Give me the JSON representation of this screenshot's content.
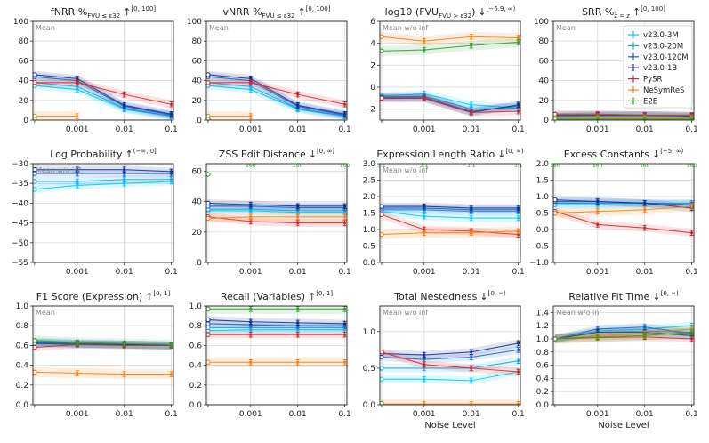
{
  "colors": {
    "v23.0-3M": "#00ccf5",
    "v23.0-20M": "#1aa6ea",
    "v23.0-120M": "#1c62c4",
    "v23.0-1B": "#10308f",
    "PySR": "#d62728",
    "NeSymReS": "#ff7f0e",
    "E2E": "#2ca02c"
  },
  "legend": [
    "v23.0-3M",
    "v23.0-20M",
    "v23.0-120M",
    "v23.0-1B",
    "PySR",
    "NeSymReS",
    "E2E"
  ],
  "chart_data": [
    {
      "type": "line",
      "title": "fNRR %",
      "title_sub": "FVU ≤ ε32",
      "title_arrow": "↑",
      "title_sup": "[0, 100]",
      "annotation": "Mean",
      "xlabel": "",
      "ylim": [
        0,
        100
      ],
      "y_ticks": [
        0,
        20,
        40,
        60,
        80,
        100
      ],
      "y_tick_labels": [
        "0",
        "20",
        "40",
        "60",
        "80",
        "100"
      ],
      "x_tick_labels": [
        "",
        "0.001",
        "0.01",
        "0.1"
      ],
      "series": [
        {
          "name": "v23.0-3M",
          "values": [
            35,
            31,
            11,
            4
          ]
        },
        {
          "name": "v23.0-20M",
          "values": [
            38,
            34,
            12,
            4
          ]
        },
        {
          "name": "v23.0-120M",
          "values": [
            44,
            40,
            14,
            5
          ]
        },
        {
          "name": "v23.0-1B",
          "values": [
            46,
            42,
            15,
            6
          ]
        },
        {
          "name": "PySR",
          "values": [
            38,
            38,
            26,
            16
          ]
        },
        {
          "name": "NeSymReS",
          "values": [
            4,
            4,
            null,
            null
          ]
        },
        {
          "name": "E2E",
          "values": [
            1,
            null,
            null,
            null
          ]
        }
      ]
    },
    {
      "type": "line",
      "title": "vNRR %",
      "title_sub": "FVU ≤ ε32",
      "title_arrow": "↑",
      "title_sup": "[0, 100]",
      "annotation": "Mean",
      "xlabel": "",
      "ylim": [
        0,
        100
      ],
      "y_ticks": [
        0,
        20,
        40,
        60,
        80,
        100
      ],
      "y_tick_labels": [
        "0",
        "20",
        "40",
        "60",
        "80",
        "100"
      ],
      "x_tick_labels": [
        "",
        "0.001",
        "0.01",
        "0.1"
      ],
      "series": [
        {
          "name": "v23.0-3M",
          "values": [
            35,
            31,
            11,
            4
          ]
        },
        {
          "name": "v23.0-20M",
          "values": [
            38,
            34,
            12,
            4
          ]
        },
        {
          "name": "v23.0-120M",
          "values": [
            44,
            40,
            14,
            5
          ]
        },
        {
          "name": "v23.0-1B",
          "values": [
            46,
            42,
            15,
            6
          ]
        },
        {
          "name": "PySR",
          "values": [
            38,
            38,
            26,
            16
          ]
        },
        {
          "name": "NeSymReS",
          "values": [
            4,
            4,
            null,
            null
          ]
        },
        {
          "name": "E2E",
          "values": [
            1,
            null,
            null,
            null
          ]
        }
      ]
    },
    {
      "type": "line",
      "title": "log10 (FVU",
      "title_sub": "FVU > ε32",
      "title_tail": ")",
      "title_arrow": "↓",
      "title_sup": "[−6.9, ∞)",
      "annotation": "Mean w/o inf",
      "xlabel": "",
      "ylim": [
        -3,
        6
      ],
      "y_ticks": [
        -2,
        0,
        2,
        4,
        6
      ],
      "y_tick_labels": [
        "−2",
        "0",
        "2",
        "4",
        "6"
      ],
      "x_tick_labels": [
        "",
        "0.001",
        "0.01",
        "0.1"
      ],
      "series": [
        {
          "name": "v23.0-3M",
          "values": [
            -0.8,
            -0.6,
            -1.6,
            -1.9
          ]
        },
        {
          "name": "v23.0-20M",
          "values": [
            -0.9,
            -0.8,
            -2.0,
            -1.9
          ]
        },
        {
          "name": "v23.0-120M",
          "values": [
            -0.9,
            -0.9,
            -2.2,
            -1.7
          ]
        },
        {
          "name": "v23.0-1B",
          "values": [
            -1.0,
            -1.0,
            -2.3,
            -1.6
          ]
        },
        {
          "name": "PySR",
          "values": [
            -1.0,
            -1.0,
            -2.3,
            -2.2
          ]
        },
        {
          "name": "NeSymReS",
          "values": [
            4.6,
            4.2,
            4.6,
            4.5
          ]
        },
        {
          "name": "E2E",
          "values": [
            3.3,
            3.4,
            3.8,
            4.1
          ]
        }
      ]
    },
    {
      "type": "line",
      "title": "SRR %",
      "title_sub": "ẑ = z",
      "title_arrow": "↑",
      "title_sup": "[0, 100]",
      "annotation": "Mean",
      "xlabel": "",
      "ylim": [
        0,
        100
      ],
      "y_ticks": [
        0,
        20,
        40,
        60,
        80,
        100
      ],
      "y_tick_labels": [
        "0",
        "20",
        "40",
        "60",
        "80",
        "100"
      ],
      "x_tick_labels": [
        "",
        "0.001",
        "0.01",
        "0.1"
      ],
      "series": [
        {
          "name": "v23.0-3M",
          "values": [
            3,
            4,
            4,
            3
          ]
        },
        {
          "name": "v23.0-20M",
          "values": [
            3,
            4,
            4,
            3
          ]
        },
        {
          "name": "v23.0-120M",
          "values": [
            4,
            5,
            5,
            4
          ]
        },
        {
          "name": "v23.0-1B",
          "values": [
            5,
            5,
            5,
            4
          ]
        },
        {
          "name": "PySR",
          "values": [
            6,
            6,
            5,
            5
          ]
        },
        {
          "name": "NeSymReS",
          "values": [
            2,
            2,
            2,
            2
          ]
        },
        {
          "name": "E2E",
          "values": [
            1,
            1,
            1,
            1
          ]
        }
      ]
    },
    {
      "type": "line",
      "title": "Log Probability",
      "title_arrow": "↑",
      "title_sup": "(−∞, 0]",
      "annotation": "Mean w/o inf",
      "xlabel": "",
      "ylim": [
        -55,
        -30
      ],
      "y_ticks": [
        -55,
        -50,
        -45,
        -40,
        -35,
        -30
      ],
      "y_tick_labels": [
        "−55",
        "−50",
        "−45",
        "−40",
        "−35",
        "−30"
      ],
      "x_tick_labels": [
        "",
        "0.001",
        "0.01",
        "0.1"
      ],
      "series": [
        {
          "name": "v23.0-3M",
          "values": [
            -36.5,
            -35.5,
            -35,
            -34.5
          ]
        },
        {
          "name": "v23.0-20M",
          "values": [
            -34.5,
            -34.5,
            -34,
            -34
          ]
        },
        {
          "name": "v23.0-120M",
          "values": [
            -32.5,
            -32.5,
            -32.5,
            -32.5
          ]
        },
        {
          "name": "v23.0-1B",
          "values": [
            -31.5,
            -31.5,
            -31.5,
            -32
          ]
        }
      ]
    },
    {
      "type": "line",
      "title": "ZSS Edit Distance",
      "title_arrow": "↓",
      "title_sup": "[0, ∞)",
      "annotation": "",
      "xlabel": "",
      "ylim": [
        0,
        65
      ],
      "y_ticks": [
        0,
        20,
        40,
        60
      ],
      "y_tick_labels": [
        "0",
        "20",
        "40",
        "60"
      ],
      "x_tick_labels": [
        "",
        "0.001",
        "0.01",
        "0.1"
      ],
      "offscale_labels": [
        "",
        "160",
        "160",
        "160"
      ],
      "series": [
        {
          "name": "v23.0-3M",
          "values": [
            34,
            34,
            33,
            33
          ]
        },
        {
          "name": "v23.0-20M",
          "values": [
            35,
            35,
            34,
            34
          ]
        },
        {
          "name": "v23.0-120M",
          "values": [
            37,
            37,
            36,
            36
          ]
        },
        {
          "name": "v23.0-1B",
          "values": [
            39,
            38,
            37,
            37
          ]
        },
        {
          "name": "PySR",
          "values": [
            30,
            27,
            26,
            26
          ]
        },
        {
          "name": "NeSymReS",
          "values": [
            29,
            30,
            30,
            30
          ]
        },
        {
          "name": "E2E",
          "values": [
            58,
            null,
            null,
            null
          ]
        }
      ]
    },
    {
      "type": "line",
      "title": "Expression Length Ratio",
      "title_arrow": "↓",
      "title_sup": "[0, ∞)",
      "annotation": "Mean w/o inf",
      "xlabel": "",
      "ylim": [
        0,
        3
      ],
      "y_ticks": [
        0,
        0.5,
        1,
        1.5,
        2,
        2.5,
        3
      ],
      "y_tick_labels": [
        "0.0",
        "0.5",
        "1.0",
        "1.5",
        "2.0",
        "2.5",
        "3.0"
      ],
      "x_tick_labels": [
        "",
        "0.001",
        "0.01",
        "0.1"
      ],
      "offscale_labels": [
        "3.1",
        "3.1",
        "3.1",
        "3.1"
      ],
      "series": [
        {
          "name": "v23.0-3M",
          "values": [
            1.55,
            1.4,
            1.35,
            1.35
          ]
        },
        {
          "name": "v23.0-20M",
          "values": [
            1.6,
            1.6,
            1.55,
            1.55
          ]
        },
        {
          "name": "v23.0-120M",
          "values": [
            1.65,
            1.65,
            1.6,
            1.6
          ]
        },
        {
          "name": "v23.0-1B",
          "values": [
            1.7,
            1.7,
            1.65,
            1.65
          ]
        },
        {
          "name": "PySR",
          "values": [
            1.45,
            1.0,
            0.95,
            0.85
          ]
        },
        {
          "name": "NeSymReS",
          "values": [
            0.85,
            0.9,
            0.9,
            0.95
          ]
        }
      ]
    },
    {
      "type": "line",
      "title": "Excess Constants",
      "title_arrow": "↓",
      "title_sup": "[−5, ∞)",
      "annotation": "",
      "xlabel": "",
      "ylim": [
        -1,
        2
      ],
      "y_ticks": [
        -1,
        -0.5,
        0,
        0.5,
        1,
        1.5,
        2
      ],
      "y_tick_labels": [
        "−1.0",
        "−0.5",
        "0.0",
        "0.5",
        "1.0",
        "1.5",
        "2.0"
      ],
      "x_tick_labels": [
        "",
        "0.001",
        "0.01",
        "0.1"
      ],
      "offscale_labels": [
        "160",
        "160",
        "160",
        "160"
      ],
      "series": [
        {
          "name": "v23.0-3M",
          "values": [
            0.75,
            0.75,
            0.75,
            0.8
          ]
        },
        {
          "name": "v23.0-20M",
          "values": [
            0.8,
            0.8,
            0.8,
            0.8
          ]
        },
        {
          "name": "v23.0-120M",
          "values": [
            0.85,
            0.85,
            0.8,
            0.75
          ]
        },
        {
          "name": "v23.0-1B",
          "values": [
            0.9,
            0.85,
            0.8,
            0.65
          ]
        },
        {
          "name": "PySR",
          "values": [
            0.55,
            0.15,
            0.05,
            -0.1
          ]
        },
        {
          "name": "NeSymReS",
          "values": [
            0.5,
            0.55,
            0.6,
            0.7
          ]
        }
      ]
    },
    {
      "type": "line",
      "title": "F1 Score (Expression)",
      "title_arrow": "↑",
      "title_sup": "[0, 1]",
      "annotation": "Mean",
      "xlabel": "",
      "ylim": [
        0,
        1
      ],
      "y_ticks": [
        0,
        0.2,
        0.4,
        0.6,
        0.8,
        1
      ],
      "y_tick_labels": [
        "0.0",
        "0.2",
        "0.4",
        "0.6",
        "0.8",
        "1.0"
      ],
      "x_tick_labels": [
        "",
        "0.001",
        "0.01",
        "0.1"
      ],
      "series": [
        {
          "name": "v23.0-3M",
          "values": [
            0.63,
            0.62,
            0.61,
            0.6
          ]
        },
        {
          "name": "v23.0-20M",
          "values": [
            0.64,
            0.62,
            0.61,
            0.6
          ]
        },
        {
          "name": "v23.0-120M",
          "values": [
            0.63,
            0.62,
            0.61,
            0.6
          ]
        },
        {
          "name": "v23.0-1B",
          "values": [
            0.62,
            0.61,
            0.61,
            0.6
          ]
        },
        {
          "name": "PySR",
          "values": [
            0.58,
            0.61,
            0.6,
            0.6
          ]
        },
        {
          "name": "NeSymReS",
          "values": [
            0.33,
            0.32,
            0.31,
            0.31
          ]
        },
        {
          "name": "E2E",
          "values": [
            0.65,
            0.63,
            0.62,
            0.61
          ]
        }
      ]
    },
    {
      "type": "line",
      "title": "Recall (Variables)",
      "title_arrow": "↑",
      "title_sup": "[0, 1]",
      "annotation": "",
      "xlabel": "",
      "ylim": [
        0,
        1
      ],
      "y_ticks": [
        0,
        0.2,
        0.4,
        0.6,
        0.8,
        1
      ],
      "y_tick_labels": [
        "0.0",
        "0.2",
        "0.4",
        "0.6",
        "0.8",
        "1.0"
      ],
      "x_tick_labels": [
        "",
        "0.001",
        "0.01",
        "0.1"
      ],
      "series": [
        {
          "name": "v23.0-3M",
          "values": [
            0.75,
            0.76,
            0.76,
            0.76
          ]
        },
        {
          "name": "v23.0-20M",
          "values": [
            0.78,
            0.78,
            0.78,
            0.78
          ]
        },
        {
          "name": "v23.0-120M",
          "values": [
            0.82,
            0.81,
            0.8,
            0.8
          ]
        },
        {
          "name": "v23.0-1B",
          "values": [
            0.86,
            0.84,
            0.83,
            0.82
          ]
        },
        {
          "name": "PySR",
          "values": [
            0.71,
            0.71,
            0.71,
            0.71
          ]
        },
        {
          "name": "NeSymReS",
          "values": [
            0.43,
            0.43,
            0.43,
            0.43
          ]
        },
        {
          "name": "E2E",
          "values": [
            0.97,
            0.97,
            0.97,
            0.97
          ]
        }
      ]
    },
    {
      "type": "line",
      "title": "Total Nestedness",
      "title_arrow": "↓",
      "title_sup": "[0, ∞)",
      "annotation": "Mean w/o inf",
      "xlabel": "Noise Level",
      "ylim": [
        0,
        1.35
      ],
      "y_ticks": [
        0,
        0.5,
        1
      ],
      "y_tick_labels": [
        "0.0",
        "0.5",
        "1.0"
      ],
      "x_tick_labels": [
        "",
        "0.001",
        "0.01",
        "0.1"
      ],
      "series": [
        {
          "name": "v23.0-3M",
          "values": [
            0.35,
            0.35,
            0.33,
            0.45
          ]
        },
        {
          "name": "v23.0-20M",
          "values": [
            0.5,
            0.5,
            0.5,
            0.6
          ]
        },
        {
          "name": "v23.0-120M",
          "values": [
            0.65,
            0.62,
            0.65,
            0.75
          ]
        },
        {
          "name": "v23.0-1B",
          "values": [
            0.7,
            0.68,
            0.72,
            0.84
          ]
        },
        {
          "name": "PySR",
          "values": [
            0.72,
            0.55,
            0.5,
            0.45
          ]
        },
        {
          "name": "NeSymReS",
          "values": [
            0.01,
            0.01,
            0.01,
            0.01
          ]
        },
        {
          "name": "E2E",
          "values": [
            0.02,
            null,
            null,
            null
          ]
        }
      ]
    },
    {
      "type": "line",
      "title": "Relative Fit Time",
      "title_arrow": "↓",
      "title_sup": "[0, ∞)",
      "annotation": "Mean w/o inf",
      "xlabel": "Noise Level",
      "ylim": [
        0,
        1.5
      ],
      "y_ticks": [
        0,
        0.2,
        0.4,
        0.6,
        0.8,
        1,
        1.2,
        1.4
      ],
      "y_tick_labels": [
        "0.0",
        "0.2",
        "0.4",
        "0.6",
        "0.8",
        "1.0",
        "1.2",
        "1.4"
      ],
      "x_tick_labels": [
        "",
        "0.001",
        "0.01",
        "0.1"
      ],
      "series": [
        {
          "name": "v23.0-3M",
          "values": [
            1.0,
            1.12,
            1.15,
            1.2
          ]
        },
        {
          "name": "v23.0-20M",
          "values": [
            1.0,
            1.1,
            1.12,
            1.1
          ]
        },
        {
          "name": "v23.0-120M",
          "values": [
            1.0,
            1.15,
            1.18,
            1.08
          ]
        },
        {
          "name": "v23.0-1B",
          "values": [
            1.0,
            1.1,
            1.1,
            1.05
          ]
        },
        {
          "name": "PySR",
          "values": [
            1.0,
            1.02,
            1.03,
            1.0
          ]
        },
        {
          "name": "NeSymReS",
          "values": [
            1.0,
            1.05,
            1.08,
            1.15
          ]
        },
        {
          "name": "E2E",
          "values": [
            1.0,
            1.03,
            1.05,
            1.1
          ]
        }
      ]
    }
  ]
}
